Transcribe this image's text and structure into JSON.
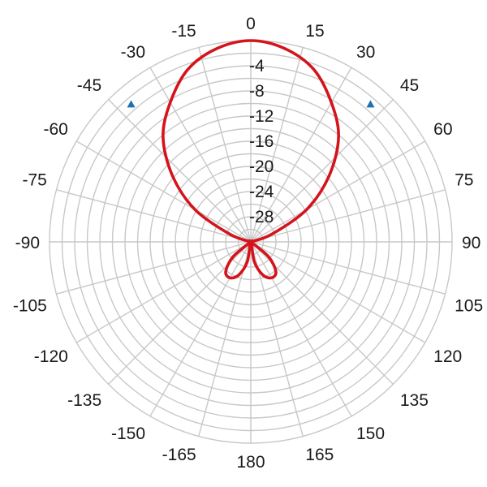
{
  "chart_data": {
    "type": "polar-line",
    "title": "",
    "angle_unit": "degrees",
    "zero_direction": "top",
    "angular_ticks": [
      "0",
      "15",
      "30",
      "45",
      "60",
      "75",
      "90",
      "105",
      "120",
      "135",
      "150",
      "165",
      "180",
      "-165",
      "-150",
      "-135",
      "-120",
      "-105",
      "-90",
      "-75",
      "-60",
      "-45",
      "-30",
      "-15"
    ],
    "radial_ticks": [
      "-4",
      "-8",
      "-12",
      "-16",
      "-20",
      "-24",
      "-28"
    ],
    "radial_range_db": [
      -32,
      0
    ],
    "grid": true,
    "series": [
      {
        "color": "#d4141c",
        "angles_deg": [
          -180,
          -170,
          -160,
          -150,
          -140,
          -130,
          -120,
          -110,
          -100,
          -90,
          -80,
          -70,
          -60,
          -50,
          -40,
          -30,
          -20,
          -10,
          0,
          10,
          20,
          30,
          40,
          50,
          60,
          70,
          80,
          90,
          100,
          110,
          120,
          130,
          140,
          150,
          160,
          170,
          180
        ],
        "gain_db": [
          -32,
          -28.8,
          -26.4,
          -25.4,
          -25.8,
          -28.3,
          -32,
          -32,
          -32,
          -32,
          -32,
          -28.5,
          -21.8,
          -15.8,
          -10.3,
          -6.4,
          -2.8,
          -0.8,
          0,
          -0.8,
          -2.8,
          -6.4,
          -10.3,
          -15.8,
          -21.8,
          -28.5,
          -32,
          -32,
          -32,
          -32,
          -32,
          -28.3,
          -25.8,
          -25.4,
          -26.4,
          -28.8,
          -32
        ]
      }
    ],
    "markers": [
      {
        "angle_deg": -41,
        "gain_db": -3,
        "color": "#1f6fb5"
      },
      {
        "angle_deg": 41,
        "gain_db": -3,
        "color": "#1f6fb5"
      }
    ]
  }
}
